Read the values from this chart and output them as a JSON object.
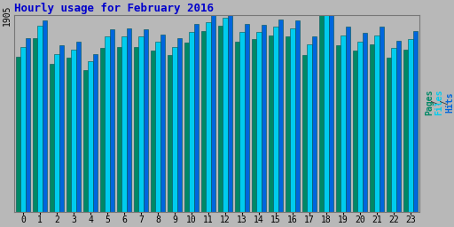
{
  "title": "Hourly usage for February 2016",
  "title_color": "#0000cc",
  "background_color": "#b8b8b8",
  "plot_bg_color": "#b8b8b8",
  "hours": [
    0,
    1,
    2,
    3,
    4,
    5,
    6,
    7,
    8,
    9,
    10,
    11,
    12,
    13,
    14,
    15,
    16,
    17,
    18,
    19,
    20,
    21,
    22,
    23
  ],
  "pages": [
    1500,
    1680,
    1430,
    1490,
    1370,
    1590,
    1600,
    1600,
    1560,
    1520,
    1640,
    1750,
    1800,
    1650,
    1670,
    1710,
    1700,
    1520,
    1905,
    1610,
    1560,
    1620,
    1490,
    1570
  ],
  "files": [
    1600,
    1800,
    1530,
    1570,
    1460,
    1700,
    1700,
    1700,
    1650,
    1600,
    1740,
    1840,
    1880,
    1740,
    1740,
    1790,
    1780,
    1620,
    1905,
    1710,
    1650,
    1710,
    1590,
    1670
  ],
  "hits": [
    1680,
    1850,
    1610,
    1650,
    1530,
    1770,
    1780,
    1770,
    1720,
    1680,
    1820,
    1905,
    1905,
    1820,
    1810,
    1860,
    1850,
    1700,
    1905,
    1790,
    1730,
    1790,
    1660,
    1750
  ],
  "pages_color": "#008866",
  "files_color": "#00ccee",
  "hits_color": "#0066dd",
  "bar_edge_color": "#005555",
  "ylim_max": 1905,
  "ytick_label": "1905",
  "grid_color": "#999999",
  "spine_color": "#777777"
}
